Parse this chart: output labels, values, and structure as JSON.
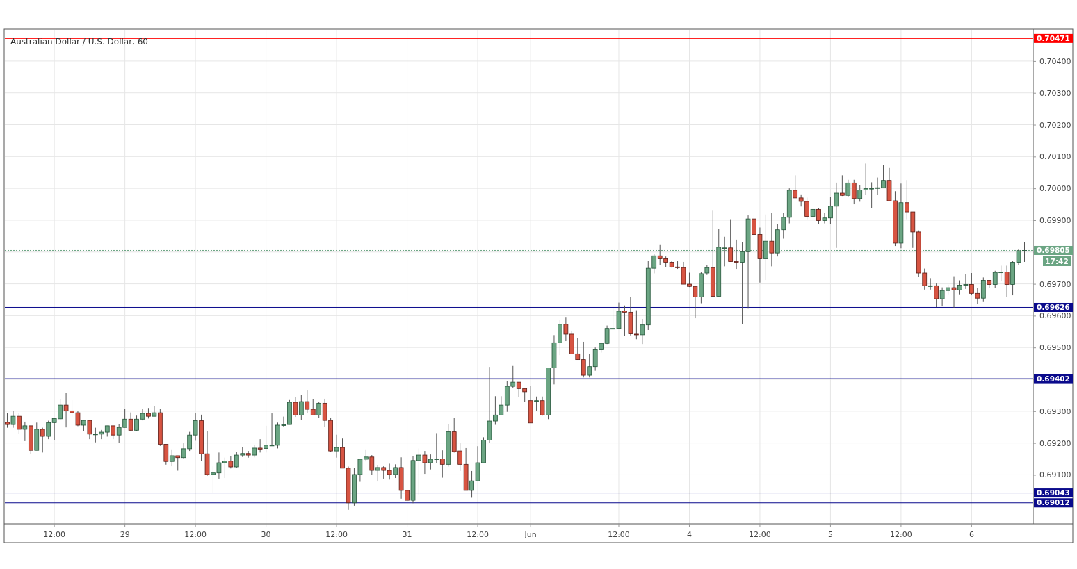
{
  "chart_data": {
    "type": "candlestick",
    "title": "Australian Dollar / U.S. Dollar, 60",
    "categories": [
      null,
      null,
      null,
      null,
      null,
      null,
      null,
      null,
      "12:00",
      null,
      null,
      null,
      null,
      null,
      null,
      null,
      null,
      null,
      null,
      null,
      "29",
      null,
      null,
      null,
      null,
      null,
      null,
      null,
      null,
      null,
      null,
      null,
      "12:00",
      null,
      null,
      null,
      null,
      null,
      null,
      null,
      null,
      null,
      null,
      null,
      "30",
      null,
      null,
      null,
      null,
      null,
      null,
      null,
      null,
      null,
      null,
      null,
      "12:00",
      null,
      null,
      null,
      null,
      null,
      null,
      null,
      null,
      null,
      null,
      null,
      "31",
      null,
      null,
      null,
      null,
      null,
      null,
      null,
      null,
      null,
      null,
      null,
      "12:00",
      null,
      null,
      null,
      null,
      null,
      null,
      null,
      null,
      "Jun",
      null,
      null,
      null,
      null,
      null,
      null,
      null,
      null,
      null,
      null,
      null,
      null,
      null,
      null,
      "12:00",
      null,
      null,
      null,
      null,
      null,
      null,
      null,
      null,
      null,
      null,
      null,
      "4",
      null,
      null,
      null,
      null,
      null,
      null,
      null,
      null,
      null,
      null,
      null,
      "12:00",
      null,
      null,
      null,
      null,
      null,
      null,
      null,
      null,
      null,
      null,
      null,
      "5",
      null,
      null,
      null,
      null,
      null,
      null,
      null,
      null,
      null,
      null,
      null,
      "12:00",
      null,
      null,
      null,
      null,
      null,
      null,
      null,
      null,
      null,
      null,
      null,
      "6",
      null,
      null,
      null,
      null,
      null,
      null,
      null,
      null,
      null
    ],
    "ohlc": [
      [
        0.69265,
        0.69293,
        0.69248,
        0.69258
      ],
      [
        0.69258,
        0.69301,
        0.69248,
        0.69284
      ],
      [
        0.69284,
        0.69293,
        0.69229,
        0.69243
      ],
      [
        0.69243,
        0.69267,
        0.69206,
        0.69254
      ],
      [
        0.69254,
        0.69254,
        0.69166,
        0.69177
      ],
      [
        0.69177,
        0.69264,
        0.69177,
        0.69243
      ],
      [
        0.69243,
        0.69248,
        0.6917,
        0.69221
      ],
      [
        0.69221,
        0.6927,
        0.69212,
        0.69264
      ],
      [
        0.69264,
        0.69277,
        0.69209,
        0.69277
      ],
      [
        0.69276,
        0.69338,
        0.69274,
        0.69319
      ],
      [
        0.69319,
        0.69357,
        0.69249,
        0.69301
      ],
      [
        0.69301,
        0.69335,
        0.69282,
        0.69295
      ],
      [
        0.69295,
        0.693,
        0.69253,
        0.69256
      ],
      [
        0.69256,
        0.69271,
        0.69238,
        0.69271
      ],
      [
        0.69271,
        0.69271,
        0.69212,
        0.69228
      ],
      [
        0.69228,
        0.69248,
        0.69202,
        0.69228
      ],
      [
        0.69228,
        0.69241,
        0.69212,
        0.69234
      ],
      [
        0.69234,
        0.69254,
        0.6922,
        0.69254
      ],
      [
        0.69254,
        0.69254,
        0.69212,
        0.69225
      ],
      [
        0.69225,
        0.69259,
        0.692,
        0.69249
      ],
      [
        0.69249,
        0.69307,
        0.69249,
        0.69275
      ],
      [
        0.69275,
        0.69296,
        0.69238,
        0.6924
      ],
      [
        0.6924,
        0.69286,
        0.69238,
        0.69275
      ],
      [
        0.69275,
        0.69307,
        0.69271,
        0.69293
      ],
      [
        0.69293,
        0.6931,
        0.69277,
        0.69284
      ],
      [
        0.69284,
        0.69316,
        0.69284,
        0.69295
      ],
      [
        0.69295,
        0.69307,
        0.69191,
        0.69196
      ],
      [
        0.69196,
        0.69196,
        0.69132,
        0.69142
      ],
      [
        0.69142,
        0.6918,
        0.69127,
        0.6916
      ],
      [
        0.6916,
        0.6916,
        0.69113,
        0.69154
      ],
      [
        0.69154,
        0.69199,
        0.69149,
        0.69182
      ],
      [
        0.69182,
        0.69235,
        0.69175,
        0.69225
      ],
      [
        0.69225,
        0.69293,
        0.69207,
        0.6927
      ],
      [
        0.6927,
        0.69289,
        0.69144,
        0.69166
      ],
      [
        0.69166,
        0.69238,
        0.69097,
        0.69101
      ],
      [
        0.69101,
        0.69127,
        0.69043,
        0.69106
      ],
      [
        0.69106,
        0.6917,
        0.69088,
        0.69138
      ],
      [
        0.69138,
        0.69154,
        0.6909,
        0.69143
      ],
      [
        0.69143,
        0.69159,
        0.6912,
        0.69125
      ],
      [
        0.69125,
        0.69173,
        0.69122,
        0.69162
      ],
      [
        0.69162,
        0.69188,
        0.69156,
        0.69167
      ],
      [
        0.69167,
        0.69175,
        0.69154,
        0.69162
      ],
      [
        0.69162,
        0.69195,
        0.69155,
        0.69184
      ],
      [
        0.69184,
        0.69212,
        0.6917,
        0.69181
      ],
      [
        0.69183,
        0.69254,
        0.6917,
        0.69193
      ],
      [
        0.69193,
        0.69293,
        0.69193,
        0.69193
      ],
      [
        0.69193,
        0.69264,
        0.69183,
        0.69256
      ],
      [
        0.69257,
        0.69283,
        0.69251,
        0.69257
      ],
      [
        0.69258,
        0.69335,
        0.69258,
        0.69328
      ],
      [
        0.69328,
        0.69345,
        0.69282,
        0.69288
      ],
      [
        0.69288,
        0.69352,
        0.69272,
        0.6933
      ],
      [
        0.6933,
        0.69365,
        0.69293,
        0.69306
      ],
      [
        0.69306,
        0.69338,
        0.69288,
        0.69288
      ],
      [
        0.69288,
        0.6933,
        0.69278,
        0.69325
      ],
      [
        0.69325,
        0.69339,
        0.69251,
        0.69271
      ],
      [
        0.69271,
        0.6928,
        0.69173,
        0.69175
      ],
      [
        0.69175,
        0.69226,
        0.69154,
        0.69186
      ],
      [
        0.69186,
        0.69214,
        0.69121,
        0.69121
      ],
      [
        0.69121,
        0.69126,
        0.6899,
        0.69012
      ],
      [
        0.69012,
        0.69122,
        0.69003,
        0.69101
      ],
      [
        0.69101,
        0.69149,
        0.69078,
        0.69149
      ],
      [
        0.69149,
        0.6918,
        0.69142,
        0.69156
      ],
      [
        0.69156,
        0.69162,
        0.69099,
        0.69114
      ],
      [
        0.69114,
        0.6913,
        0.69079,
        0.69123
      ],
      [
        0.69123,
        0.69127,
        0.69088,
        0.69114
      ],
      [
        0.69114,
        0.69135,
        0.69085,
        0.69101
      ],
      [
        0.69101,
        0.69133,
        0.6909,
        0.69123
      ],
      [
        0.69123,
        0.69155,
        0.69025,
        0.69051
      ],
      [
        0.69051,
        0.69051,
        0.69017,
        0.6902
      ],
      [
        0.6902,
        0.69159,
        0.69011,
        0.69145
      ],
      [
        0.69145,
        0.69183,
        0.69038,
        0.69162
      ],
      [
        0.69162,
        0.69175,
        0.69103,
        0.69138
      ],
      [
        0.69138,
        0.69164,
        0.69117,
        0.69149
      ],
      [
        0.6915,
        0.69231,
        0.69137,
        0.6915
      ],
      [
        0.6915,
        0.69177,
        0.69091,
        0.69133
      ],
      [
        0.69133,
        0.6926,
        0.69126,
        0.69235
      ],
      [
        0.69235,
        0.69278,
        0.6917,
        0.69173
      ],
      [
        0.69175,
        0.69199,
        0.69112,
        0.69133
      ],
      [
        0.69133,
        0.69184,
        0.69051,
        0.69051
      ],
      [
        0.69051,
        0.69112,
        0.69028,
        0.69081
      ],
      [
        0.69081,
        0.6919,
        0.69081,
        0.69138
      ],
      [
        0.69138,
        0.69218,
        0.69138,
        0.69209
      ],
      [
        0.69209,
        0.69439,
        0.692,
        0.69269
      ],
      [
        0.69269,
        0.69347,
        0.69257,
        0.69288
      ],
      [
        0.69288,
        0.69347,
        0.69288,
        0.69319
      ],
      [
        0.69319,
        0.69395,
        0.69298,
        0.69378
      ],
      [
        0.69378,
        0.69442,
        0.69372,
        0.69391
      ],
      [
        0.69391,
        0.69391,
        0.69345,
        0.69371
      ],
      [
        0.69371,
        0.69371,
        0.6933,
        0.69361
      ],
      [
        0.69333,
        0.69379,
        0.69263,
        0.69263
      ],
      [
        0.69333,
        0.69346,
        0.69302,
        0.69333
      ],
      [
        0.69333,
        0.69346,
        0.69286,
        0.69288
      ],
      [
        0.69288,
        0.69436,
        0.69275,
        0.69436
      ],
      [
        0.69436,
        0.69539,
        0.69384,
        0.69515
      ],
      [
        0.69515,
        0.69586,
        0.69476,
        0.69573
      ],
      [
        0.69573,
        0.69596,
        0.6952,
        0.69542
      ],
      [
        0.69542,
        0.69553,
        0.6948,
        0.6948
      ],
      [
        0.6948,
        0.69531,
        0.69462,
        0.69462
      ],
      [
        0.69462,
        0.69518,
        0.69406,
        0.69413
      ],
      [
        0.69413,
        0.69479,
        0.69406,
        0.6944
      ],
      [
        0.6944,
        0.695,
        0.69427,
        0.69493
      ],
      [
        0.69493,
        0.69516,
        0.69484,
        0.69513
      ],
      [
        0.69513,
        0.69569,
        0.69511,
        0.6956
      ],
      [
        0.6956,
        0.69625,
        0.69557,
        0.6956
      ],
      [
        0.6956,
        0.69641,
        0.69559,
        0.69614
      ],
      [
        0.69615,
        0.69632,
        0.69537,
        0.69611
      ],
      [
        0.69611,
        0.69659,
        0.69538,
        0.69543
      ],
      [
        0.69542,
        0.69617,
        0.69526,
        0.6954
      ],
      [
        0.6954,
        0.6959,
        0.69511,
        0.69571
      ],
      [
        0.69571,
        0.69773,
        0.69555,
        0.69749
      ],
      [
        0.69749,
        0.69795,
        0.69733,
        0.69788
      ],
      [
        0.69788,
        0.69824,
        0.6976,
        0.69779
      ],
      [
        0.69779,
        0.69786,
        0.69753,
        0.69768
      ],
      [
        0.69768,
        0.69773,
        0.69751,
        0.69753
      ],
      [
        0.69753,
        0.69771,
        0.69747,
        0.69751
      ],
      [
        0.69751,
        0.69769,
        0.69699,
        0.69699
      ],
      [
        0.69699,
        0.69735,
        0.6969,
        0.69692
      ],
      [
        0.69692,
        0.69692,
        0.69592,
        0.69659
      ],
      [
        0.69659,
        0.69737,
        0.69639,
        0.69732
      ],
      [
        0.69734,
        0.69758,
        0.69728,
        0.69751
      ],
      [
        0.69751,
        0.69932,
        0.69658,
        0.69661
      ],
      [
        0.69661,
        0.69872,
        0.69661,
        0.69815
      ],
      [
        0.69813,
        0.69848,
        0.69755,
        0.69813
      ],
      [
        0.69813,
        0.69903,
        0.6977,
        0.6977
      ],
      [
        0.6977,
        0.69839,
        0.69747,
        0.69768
      ],
      [
        0.69768,
        0.69831,
        0.69573,
        0.69801
      ],
      [
        0.69801,
        0.69915,
        0.69622,
        0.69904
      ],
      [
        0.69904,
        0.69915,
        0.69825,
        0.69855
      ],
      [
        0.69855,
        0.69877,
        0.69704,
        0.69779
      ],
      [
        0.69779,
        0.69918,
        0.69712,
        0.69834
      ],
      [
        0.69834,
        0.69923,
        0.69755,
        0.69797
      ],
      [
        0.69797,
        0.69888,
        0.69786,
        0.6987
      ],
      [
        0.6987,
        0.69923,
        0.69842,
        0.69909
      ],
      [
        0.69909,
        0.7,
        0.6989,
        0.69994
      ],
      [
        0.69994,
        0.70041,
        0.6997,
        0.6997
      ],
      [
        0.6997,
        0.69981,
        0.69943,
        0.69959
      ],
      [
        0.69959,
        0.69971,
        0.69903,
        0.69912
      ],
      [
        0.69912,
        0.69934,
        0.69912,
        0.69934
      ],
      [
        0.69934,
        0.69939,
        0.69888,
        0.69899
      ],
      [
        0.69899,
        0.69923,
        0.6989,
        0.69907
      ],
      [
        0.69907,
        0.69974,
        0.69888,
        0.69944
      ],
      [
        0.69944,
        0.70018,
        0.69813,
        0.69985
      ],
      [
        0.69985,
        0.70041,
        0.69976,
        0.69978
      ],
      [
        0.69978,
        0.70027,
        0.69974,
        0.70017
      ],
      [
        0.70017,
        0.70027,
        0.6995,
        0.69968
      ],
      [
        0.69968,
        0.7001,
        0.69958,
        0.69995
      ],
      [
        0.69995,
        0.70078,
        0.6998,
        0.69999
      ],
      [
        0.7,
        0.70019,
        0.69939,
        0.7
      ],
      [
        0.7,
        0.70034,
        0.6998,
        0.70002
      ],
      [
        0.70002,
        0.70074,
        0.70002,
        0.70025
      ],
      [
        0.70025,
        0.70064,
        0.69961,
        0.69961
      ],
      [
        0.69961,
        0.69991,
        0.69819,
        0.69828
      ],
      [
        0.69828,
        0.70015,
        0.69812,
        0.69955
      ],
      [
        0.69955,
        0.70026,
        0.69903,
        0.69926
      ],
      [
        0.69926,
        0.69926,
        0.69813,
        0.69863
      ],
      [
        0.69863,
        0.69868,
        0.69722,
        0.69734
      ],
      [
        0.69734,
        0.69748,
        0.69682,
        0.69694
      ],
      [
        0.69694,
        0.69718,
        0.69682,
        0.69694
      ],
      [
        0.69694,
        0.69701,
        0.69627,
        0.69653
      ],
      [
        0.69653,
        0.69689,
        0.69629,
        0.69679
      ],
      [
        0.69679,
        0.69697,
        0.69667,
        0.69688
      ],
      [
        0.69688,
        0.69724,
        0.69625,
        0.69681
      ],
      [
        0.69681,
        0.69711,
        0.69667,
        0.69696
      ],
      [
        0.69698,
        0.69731,
        0.69684,
        0.69698
      ],
      [
        0.69698,
        0.69734,
        0.69664,
        0.6967
      ],
      [
        0.6967,
        0.69687,
        0.69636,
        0.69655
      ],
      [
        0.69655,
        0.6972,
        0.69645,
        0.69711
      ],
      [
        0.69711,
        0.69711,
        0.69688,
        0.69698
      ],
      [
        0.69698,
        0.69741,
        0.69688,
        0.69736
      ],
      [
        0.69737,
        0.69757,
        0.69709,
        0.69737
      ],
      [
        0.69737,
        0.69757,
        0.69658,
        0.69698
      ],
      [
        0.69698,
        0.69773,
        0.69664,
        0.69768
      ],
      [
        0.69768,
        0.69809,
        0.69759,
        0.69804
      ],
      [
        0.69805,
        0.69831,
        0.69769,
        0.69805
      ]
    ],
    "ylim": [
      0.68946,
      0.70498
    ],
    "yticks": [
      {
        "value": 0.691,
        "label": "0.69100"
      },
      {
        "value": 0.692,
        "label": "0.69200"
      },
      {
        "value": 0.693,
        "label": "0.69300"
      },
      {
        "value": 0.694,
        "label": null
      },
      {
        "value": 0.695,
        "label": "0.69500"
      },
      {
        "value": 0.696,
        "label": "0.69600"
      },
      {
        "value": 0.697,
        "label": "0.69700"
      },
      {
        "value": 0.698,
        "label": null
      },
      {
        "value": 0.699,
        "label": "0.69900"
      },
      {
        "value": 0.7,
        "label": "0.70000"
      },
      {
        "value": 0.701,
        "label": "0.70100"
      },
      {
        "value": 0.702,
        "label": "0.70200"
      },
      {
        "value": 0.703,
        "label": "0.70300"
      },
      {
        "value": 0.704,
        "label": "0.70400"
      }
    ],
    "ref_lines": [
      {
        "axis": "y",
        "value": 0.70471,
        "label": "0.70471",
        "color": "#ff0000"
      },
      {
        "axis": "y",
        "value": 0.69805,
        "label": "0.69805",
        "color": "#6ba583",
        "line_style": "dotted"
      },
      {
        "axis": "y",
        "value": 0.69626,
        "label": "0.69626",
        "color": "#0a0a8c"
      },
      {
        "axis": "y",
        "value": 0.69402,
        "label": "0.69402",
        "color": "#0a0a8c"
      },
      {
        "axis": "y",
        "value": 0.69043,
        "label": "0.69043",
        "color": "#0a0a8c"
      },
      {
        "axis": "y",
        "value": 0.69012,
        "label": "0.69012",
        "color": "#0a0a8c"
      }
    ],
    "annotations": [
      "17:42"
    ],
    "grid": true
  }
}
